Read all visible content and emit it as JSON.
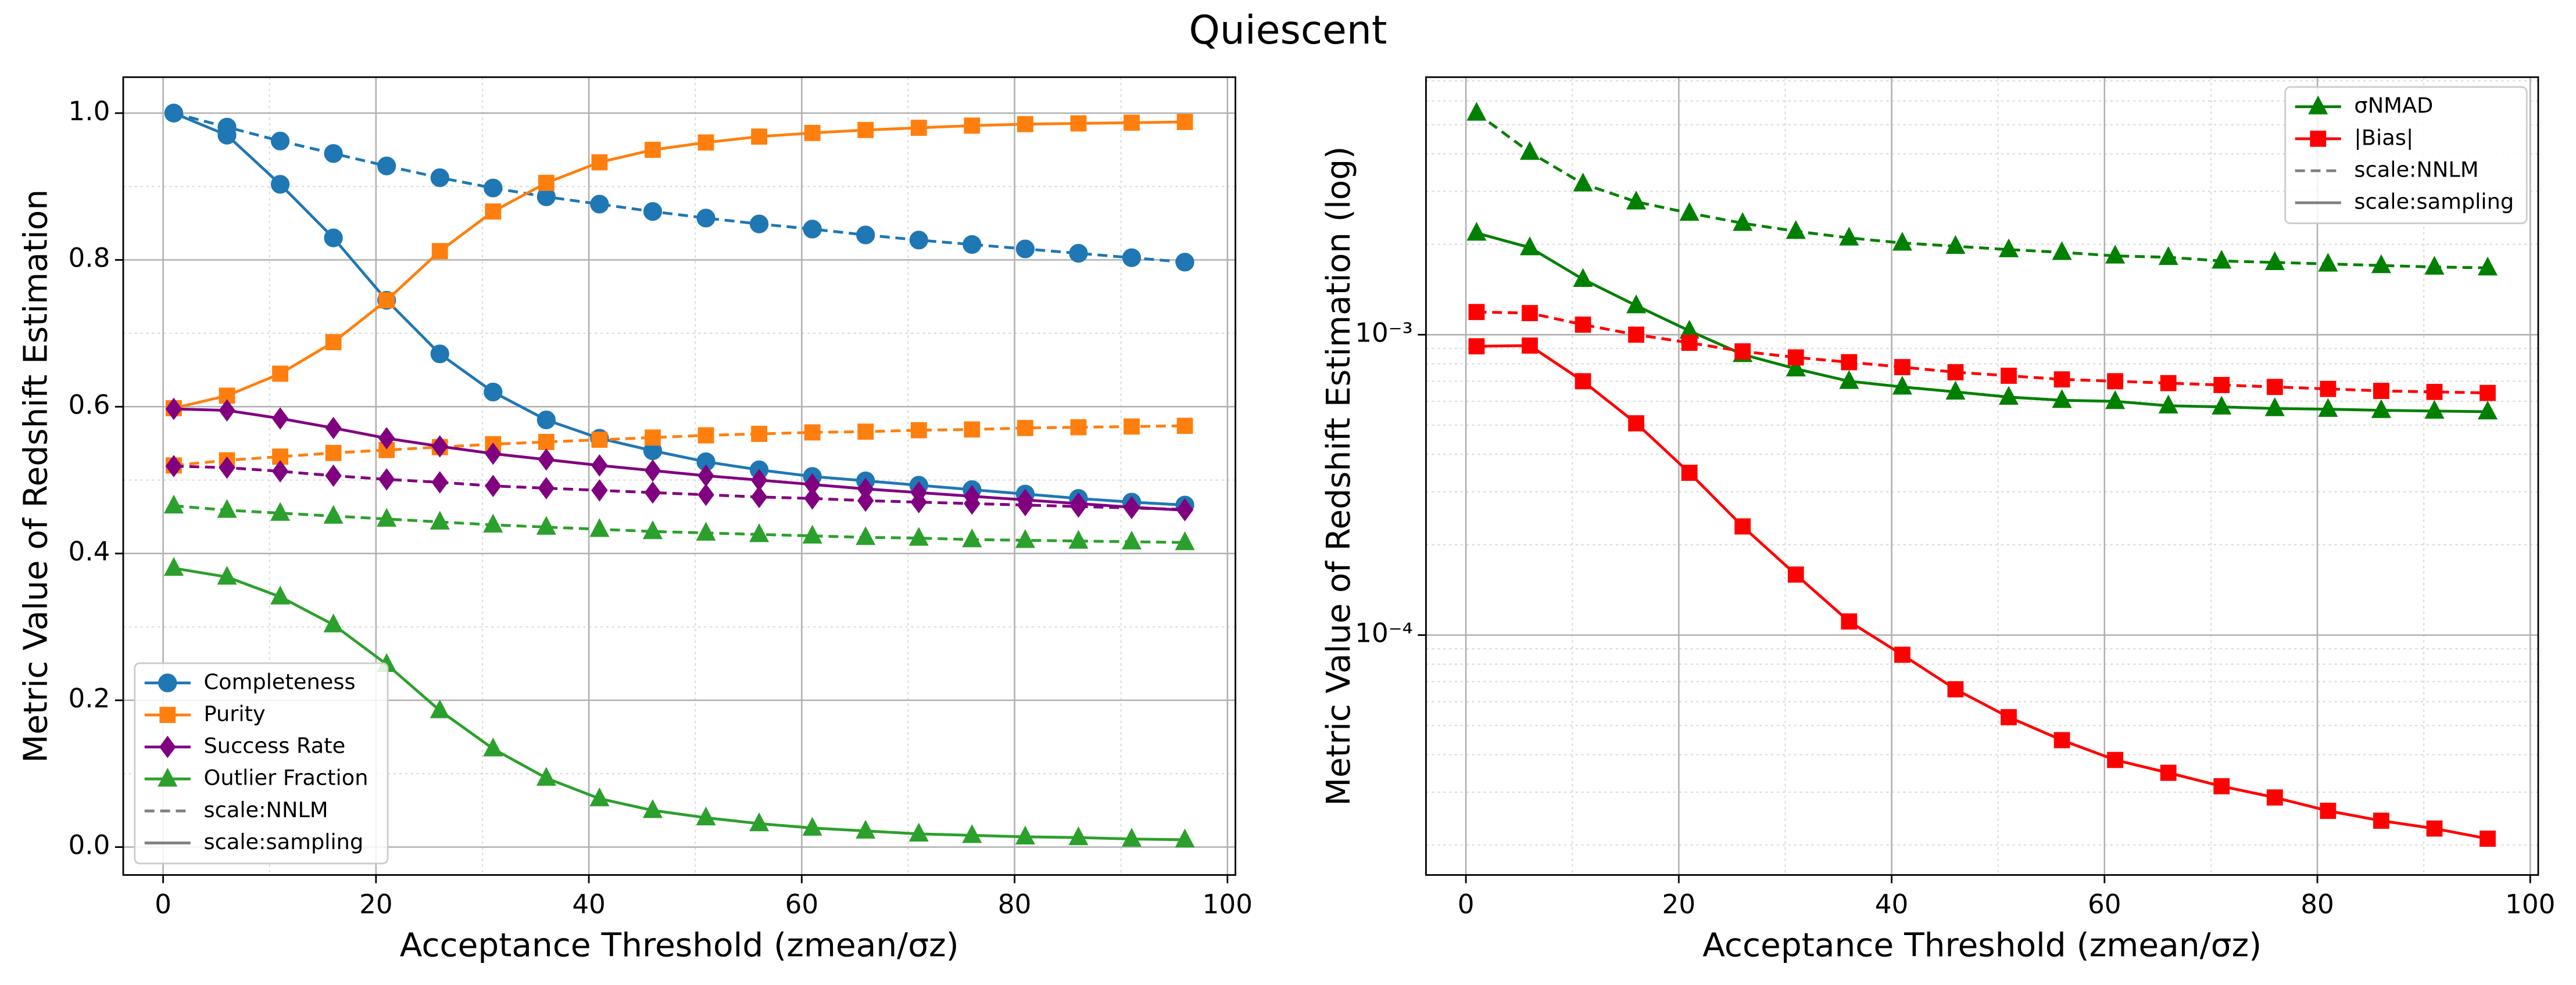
{
  "title": "Quiescent",
  "chart_data": [
    {
      "type": "line",
      "ylabel": "Metric Value of Redshift Estimation",
      "xlabel": "Acceptance Threshold (zmean/σz)",
      "x": [
        1,
        6,
        11,
        16,
        21,
        26,
        31,
        36,
        41,
        46,
        51,
        56,
        61,
        66,
        71,
        76,
        81,
        86,
        91,
        96
      ],
      "xlim": [
        -3.75,
        100.75
      ],
      "xticks": [
        0,
        20,
        40,
        60,
        80,
        100
      ],
      "ylim": [
        -0.038,
        1.049
      ],
      "yticks": [
        {
          "value": 0,
          "label": "0.0"
        },
        0.2,
        0.4,
        0.6,
        0.8,
        {
          "value": 1,
          "label": "1.0"
        }
      ],
      "grid": true,
      "minor_grid": true,
      "legend": "lower left",
      "series": [
        {
          "name": "Completeness",
          "color": "#1f77b4",
          "marker": "circle",
          "values": [
            1.0,
            0.97,
            0.903,
            0.83,
            0.745,
            0.672,
            0.62,
            0.582,
            0.557,
            0.54,
            0.525,
            0.514,
            0.505,
            0.499,
            0.493,
            0.487,
            0.481,
            0.475,
            0.47,
            0.466
          ],
          "nnlm_values": [
            1.0,
            0.981,
            0.962,
            0.945,
            0.928,
            0.912,
            0.898,
            0.886,
            0.876,
            0.866,
            0.857,
            0.849,
            0.842,
            0.834,
            0.827,
            0.821,
            0.815,
            0.809,
            0.803,
            0.797
          ]
        },
        {
          "name": "Purity",
          "color": "#ff7f0e",
          "marker": "square",
          "values": [
            0.598,
            0.615,
            0.645,
            0.688,
            0.745,
            0.812,
            0.866,
            0.905,
            0.933,
            0.95,
            0.96,
            0.968,
            0.973,
            0.977,
            0.98,
            0.983,
            0.985,
            0.986,
            0.987,
            0.988
          ],
          "nnlm_values": [
            0.52,
            0.527,
            0.532,
            0.537,
            0.541,
            0.545,
            0.549,
            0.552,
            0.555,
            0.558,
            0.561,
            0.563,
            0.565,
            0.566,
            0.568,
            0.569,
            0.571,
            0.572,
            0.573,
            0.574
          ]
        },
        {
          "name": "Success Rate",
          "color": "#800080",
          "marker": "diamond",
          "values": [
            0.597,
            0.595,
            0.584,
            0.571,
            0.557,
            0.546,
            0.536,
            0.528,
            0.52,
            0.513,
            0.506,
            0.5,
            0.494,
            0.488,
            0.483,
            0.478,
            0.473,
            0.468,
            0.463,
            0.459
          ],
          "nnlm_values": [
            0.519,
            0.517,
            0.512,
            0.506,
            0.501,
            0.497,
            0.492,
            0.489,
            0.486,
            0.483,
            0.48,
            0.477,
            0.475,
            0.472,
            0.47,
            0.468,
            0.466,
            0.464,
            0.462,
            0.46
          ]
        },
        {
          "name": "Outlier Fraction",
          "color": "#2ca02c",
          "marker": "triangle",
          "values": [
            0.38,
            0.368,
            0.341,
            0.303,
            0.249,
            0.186,
            0.134,
            0.094,
            0.066,
            0.05,
            0.04,
            0.032,
            0.026,
            0.022,
            0.018,
            0.016,
            0.014,
            0.013,
            0.011,
            0.01
          ],
          "nnlm_values": [
            0.465,
            0.459,
            0.455,
            0.451,
            0.447,
            0.443,
            0.439,
            0.436,
            0.433,
            0.43,
            0.428,
            0.426,
            0.424,
            0.422,
            0.421,
            0.419,
            0.418,
            0.417,
            0.416,
            0.415
          ]
        }
      ],
      "styles": [
        {
          "name": "scale:NNLM",
          "linestyle": "dashed"
        },
        {
          "name": "scale:sampling",
          "linestyle": "solid"
        }
      ]
    },
    {
      "type": "line",
      "yscale": "log",
      "ylabel": "Metric Value of Redshift Estimation (log)",
      "xlabel": "Acceptance Threshold (zmean/σz)",
      "x": [
        1,
        6,
        11,
        16,
        21,
        26,
        31,
        36,
        41,
        46,
        51,
        56,
        61,
        66,
        71,
        76,
        81,
        86,
        91,
        96
      ],
      "xlim": [
        -3.75,
        100.75
      ],
      "xticks": [
        0,
        20,
        40,
        60,
        80,
        100
      ],
      "ylim": [
        1.59e-05,
        0.0072
      ],
      "yticks": [
        {
          "value": 0.0001,
          "label": "10⁻⁴"
        },
        {
          "value": 0.001,
          "label": "10⁻³"
        }
      ],
      "grid": true,
      "minor_grid": true,
      "legend": "upper right",
      "series": [
        {
          "name": "σNMAD",
          "color": "#008000",
          "marker": "triangle",
          "values": [
            0.00218,
            0.00195,
            0.00153,
            0.00125,
            0.00103,
            0.00086,
            0.00077,
            0.0007,
            0.00067,
            0.000645,
            0.00062,
            0.000605,
            0.0006,
            0.00058,
            0.000575,
            0.000568,
            0.000565,
            0.00056,
            0.000557,
            0.000554
          ],
          "nnlm_values": [
            0.00547,
            0.00405,
            0.00318,
            0.00277,
            0.00254,
            0.00235,
            0.00221,
            0.0021,
            0.00202,
            0.00197,
            0.00192,
            0.00188,
            0.00183,
            0.00181,
            0.00176,
            0.00174,
            0.00172,
            0.0017,
            0.00168,
            0.00167
          ]
        },
        {
          "name": "|Bias|",
          "color": "#ff0000",
          "marker": "square",
          "values": [
            0.000915,
            0.00092,
            0.0007,
            0.000507,
            0.000347,
            0.00023,
            0.000159,
            0.000111,
            8.6e-05,
            6.6e-05,
            5.33e-05,
            4.47e-05,
            3.84e-05,
            3.48e-05,
            3.14e-05,
            2.88e-05,
            2.6e-05,
            2.41e-05,
            2.27e-05,
            2.1e-05
          ],
          "nnlm_values": [
            0.00119,
            0.00118,
            0.00108,
            0.001,
            0.00094,
            0.00088,
            0.00084,
            0.00081,
            0.00078,
            0.00075,
            0.00073,
            0.00071,
            0.0007,
            0.00069,
            0.00068,
            0.00067,
            0.00066,
            0.00065,
            0.000645,
            0.00064
          ]
        }
      ],
      "styles": [
        {
          "name": "scale:NNLM",
          "linestyle": "dashed"
        },
        {
          "name": "scale:sampling",
          "linestyle": "solid"
        }
      ]
    }
  ]
}
